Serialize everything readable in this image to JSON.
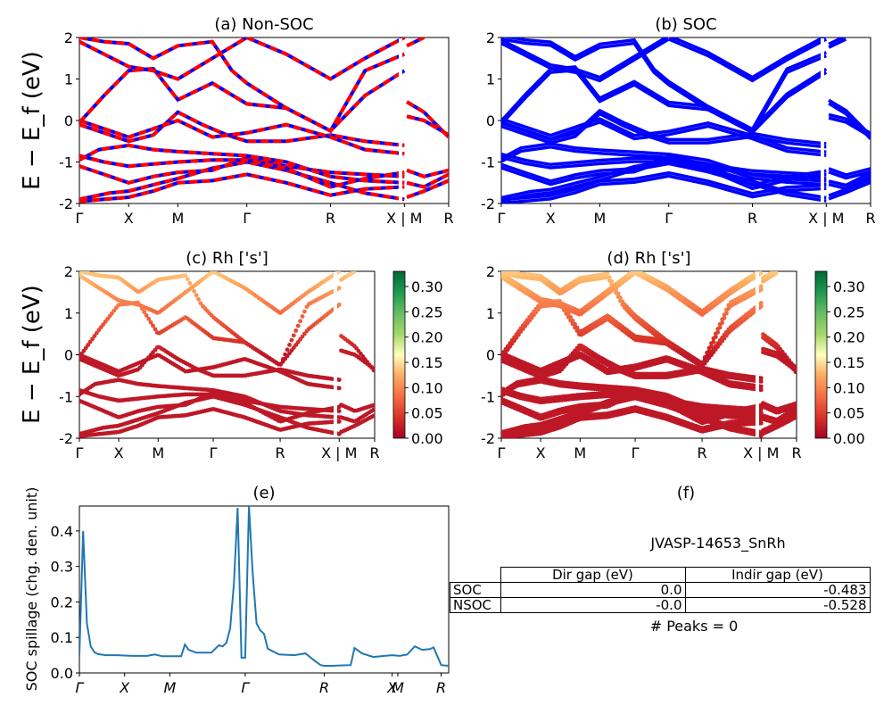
{
  "figure": {
    "ylabel_band": "E − E_f (eV)",
    "ylabel_spillage": "SOC spillage (chg. den. unit)"
  },
  "chart_data": [
    {
      "id": "a",
      "type": "line",
      "title": "(a) Non-SOC",
      "xlabel": "",
      "ylabel": "E − E_f (eV)",
      "ylim": [
        -2,
        2
      ],
      "yticks": [
        -2,
        -1,
        0,
        1,
        2
      ],
      "xticks": [
        "Γ",
        "X",
        "M",
        "Γ",
        "R",
        "X | M",
        "R"
      ],
      "tick_positions": [
        0,
        1,
        2,
        3.4,
        5.1,
        6.6,
        7.5
      ],
      "series_colors": [
        "#0000ff",
        "#ff0000"
      ],
      "bands": [
        [
          [
            0,
            -1.95
          ],
          [
            0.5,
            -1.9
          ],
          [
            1,
            -1.85
          ],
          [
            1.5,
            -1.7
          ],
          [
            2,
            -1.5
          ],
          [
            2.7,
            -1.45
          ],
          [
            3.4,
            -1.3
          ],
          [
            4.2,
            -1.5
          ],
          [
            5.1,
            -1.8
          ],
          [
            5.8,
            -1.65
          ],
          [
            6.6,
            -1.6
          ]
        ],
        [
          [
            0,
            -1.9
          ],
          [
            0.6,
            -1.75
          ],
          [
            1,
            -1.7
          ],
          [
            1.5,
            -1.55
          ],
          [
            2,
            -1.4
          ],
          [
            2.7,
            -1.15
          ],
          [
            3.4,
            -1.0
          ],
          [
            4.2,
            -1.2
          ],
          [
            5.1,
            -1.5
          ],
          [
            5.8,
            -1.75
          ],
          [
            6.6,
            -1.9
          ]
        ],
        [
          [
            0,
            -1.1
          ],
          [
            0.5,
            -1.3
          ],
          [
            1,
            -1.5
          ],
          [
            1.5,
            -1.35
          ],
          [
            2,
            -1.25
          ],
          [
            2.7,
            -1.2
          ],
          [
            3.4,
            -0.9
          ],
          [
            4.2,
            -1.1
          ],
          [
            5.1,
            -1.25
          ],
          [
            5.8,
            -1.3
          ],
          [
            6.6,
            -1.35
          ]
        ],
        [
          [
            0,
            -0.85
          ],
          [
            0.5,
            -1.0
          ],
          [
            1,
            -1.1
          ],
          [
            1.5,
            -1.05
          ],
          [
            2,
            -1.0
          ],
          [
            2.7,
            -0.95
          ],
          [
            3.4,
            -0.95
          ],
          [
            4.2,
            -1.15
          ],
          [
            5.1,
            -1.6
          ],
          [
            5.8,
            -1.4
          ],
          [
            6.6,
            -1.25
          ]
        ],
        [
          [
            0,
            -0.95
          ],
          [
            0.4,
            -0.7
          ],
          [
            1,
            -0.6
          ],
          [
            1.5,
            -0.7
          ],
          [
            2,
            -0.75
          ],
          [
            2.7,
            -0.8
          ],
          [
            3.4,
            -0.85
          ],
          [
            4.2,
            -1.0
          ],
          [
            5.1,
            -1.35
          ],
          [
            5.8,
            -1.45
          ],
          [
            6.6,
            -1.5
          ]
        ],
        [
          [
            0,
            -0.1
          ],
          [
            0.5,
            -0.3
          ],
          [
            1,
            -0.5
          ],
          [
            1.5,
            -0.35
          ],
          [
            2,
            0.2
          ],
          [
            2.5,
            -0.1
          ],
          [
            3,
            -0.35
          ],
          [
            3.4,
            -0.5
          ],
          [
            4.2,
            -0.5
          ],
          [
            5.1,
            -0.35
          ],
          [
            5.8,
            -0.5
          ],
          [
            6.6,
            -0.6
          ]
        ],
        [
          [
            0,
            0
          ],
          [
            0.5,
            -0.2
          ],
          [
            1,
            -0.4
          ],
          [
            1.5,
            -0.2
          ],
          [
            2,
            0.0
          ],
          [
            2.7,
            -0.4
          ],
          [
            3.4,
            -0.3
          ],
          [
            4.2,
            -0.1
          ],
          [
            5.1,
            -0.4
          ],
          [
            5.8,
            -0.7
          ],
          [
            6.6,
            -0.8
          ]
        ],
        [
          [
            0,
            -0.05
          ],
          [
            0.5,
            0.6
          ],
          [
            1,
            1.2
          ],
          [
            1.5,
            1.25
          ],
          [
            2,
            0.5
          ],
          [
            2.7,
            0.9
          ],
          [
            3.4,
            0.4
          ],
          [
            4.2,
            0.3
          ],
          [
            5.1,
            -0.25
          ],
          [
            5.8,
            0.6
          ],
          [
            6.6,
            1.2
          ]
        ],
        [
          [
            0,
            1.9
          ],
          [
            0.5,
            1.6
          ],
          [
            1,
            1.3
          ],
          [
            1.5,
            1.2
          ],
          [
            2,
            1.0
          ],
          [
            2.7,
            1.5
          ],
          [
            3.4,
            2.0
          ]
        ],
        [
          [
            0,
            2.0
          ],
          [
            0.5,
            1.9
          ],
          [
            1,
            1.85
          ],
          [
            1.5,
            1.5
          ],
          [
            2,
            1.8
          ],
          [
            2.7,
            1.9
          ],
          [
            3.1,
            1.2
          ],
          [
            3.4,
            0.9
          ],
          [
            4.2,
            0.3
          ],
          [
            5.1,
            -0.25
          ],
          [
            5.8,
            1.2
          ],
          [
            6.6,
            1.6
          ]
        ],
        [
          [
            3.4,
            2.0
          ],
          [
            4.2,
            1.6
          ],
          [
            5.1,
            1.0
          ],
          [
            5.8,
            1.5
          ],
          [
            6.6,
            2.0
          ]
        ],
        [
          [
            6.65,
            0.45
          ],
          [
            7.0,
            0.2
          ],
          [
            7.5,
            -0.4
          ]
        ],
        [
          [
            6.65,
            0.1
          ],
          [
            7.0,
            0.0
          ],
          [
            7.5,
            -0.35
          ]
        ],
        [
          [
            6.65,
            -1.2
          ],
          [
            7.0,
            -1.35
          ],
          [
            7.5,
            -1.2
          ]
        ],
        [
          [
            6.65,
            -1.5
          ],
          [
            7.0,
            -1.6
          ],
          [
            7.5,
            -1.3
          ]
        ],
        [
          [
            6.65,
            -1.85
          ],
          [
            7.0,
            -1.7
          ],
          [
            7.5,
            -1.45
          ]
        ],
        [
          [
            6.65,
            1.8
          ],
          [
            7.0,
            2.0
          ]
        ]
      ]
    },
    {
      "id": "b",
      "type": "line",
      "title": "(b) SOC",
      "xlabel": "",
      "ylabel": "",
      "ylim": [
        -2,
        2
      ],
      "yticks": [
        -2,
        -1,
        0,
        1,
        2
      ],
      "xticks": [
        "Γ",
        "X",
        "M",
        "Γ",
        "R",
        "X | M",
        "R"
      ],
      "tick_positions": [
        0,
        1,
        2,
        3.4,
        5.1,
        6.6,
        7.5
      ],
      "series_colors": [
        "#0000ff"
      ]
    },
    {
      "id": "c",
      "type": "scatter",
      "title": "(c)  Rh ['s']",
      "xlabel": "",
      "ylabel": "E − E_f (eV)",
      "ylim": [
        -2,
        2
      ],
      "yticks": [
        -2,
        -1,
        0,
        1,
        2
      ],
      "xticks": [
        "Γ",
        "X",
        "M",
        "Γ",
        "R",
        "X | M",
        "R"
      ],
      "tick_positions": [
        0,
        1,
        2,
        3.4,
        5.1,
        6.6,
        7.5
      ],
      "colorbar": {
        "min": 0.0,
        "max": 0.33,
        "ticks": [
          "0.00",
          "0.05",
          "0.10",
          "0.15",
          "0.20",
          "0.25",
          "0.30"
        ],
        "colormap": "RdYlGn"
      }
    },
    {
      "id": "d",
      "type": "scatter",
      "title": "(d) Rh ['s']",
      "xlabel": "",
      "ylabel": "",
      "ylim": [
        -2,
        2
      ],
      "yticks": [
        -2,
        -1,
        0,
        1,
        2
      ],
      "xticks": [
        "Γ",
        "X",
        "M",
        "Γ",
        "R",
        "X | M",
        "R"
      ],
      "tick_positions": [
        0,
        1,
        2,
        3.4,
        5.1,
        6.6,
        7.5
      ],
      "colorbar": {
        "min": 0.0,
        "max": 0.33,
        "ticks": [
          "0.00",
          "0.05",
          "0.10",
          "0.15",
          "0.20",
          "0.25",
          "0.30"
        ],
        "colormap": "RdYlGn"
      }
    },
    {
      "id": "e",
      "type": "line",
      "title": "(e)",
      "xlabel": "",
      "ylabel": "SOC spillage (chg. den. unit)",
      "ylim": [
        0,
        0.47
      ],
      "yticks": [
        0.0,
        0.1,
        0.2,
        0.3,
        0.4
      ],
      "xticks": [
        "Γ",
        "X",
        "M",
        "Γ",
        "R",
        "X",
        "M",
        "R"
      ],
      "tick_positions": [
        0,
        1.2,
        2.4,
        4.4,
        6.5,
        8.3,
        8.45,
        9.6
      ],
      "xlim": [
        0,
        9.8
      ],
      "series_colors": [
        "#1f77b4"
      ],
      "x": [
        0,
        0.1,
        0.2,
        0.3,
        0.4,
        0.5,
        0.7,
        1.0,
        1.4,
        1.8,
        2.0,
        2.2,
        2.4,
        2.7,
        2.8,
        2.9,
        3.1,
        3.5,
        3.7,
        3.8,
        3.9,
        4.0,
        4.1,
        4.2,
        4.3,
        4.4,
        4.5,
        4.6,
        4.7,
        4.8,
        4.9,
        5.0,
        5.3,
        5.7,
        6.0,
        6.2,
        6.4,
        6.5,
        6.7,
        6.9,
        7.2,
        7.3,
        7.5,
        7.8,
        8.1,
        8.3,
        8.5,
        8.7,
        8.9,
        9.1,
        9.3,
        9.4,
        9.6,
        9.8
      ],
      "values": [
        0.05,
        0.4,
        0.14,
        0.075,
        0.058,
        0.053,
        0.05,
        0.05,
        0.048,
        0.048,
        0.052,
        0.047,
        0.047,
        0.047,
        0.08,
        0.065,
        0.057,
        0.057,
        0.078,
        0.075,
        0.085,
        0.125,
        0.25,
        0.465,
        0.043,
        0.043,
        0.47,
        0.28,
        0.14,
        0.12,
        0.11,
        0.068,
        0.052,
        0.05,
        0.055,
        0.038,
        0.022,
        0.02,
        0.02,
        0.021,
        0.022,
        0.07,
        0.055,
        0.045,
        0.048,
        0.05,
        0.048,
        0.052,
        0.075,
        0.065,
        0.067,
        0.072,
        0.022,
        0.02
      ]
    }
  ],
  "panel_f": {
    "title": "(f)",
    "subtitle": "JVASP-14653_SnRh",
    "table": {
      "headers": [
        "",
        "Dir gap (eV)",
        "Indir gap (eV)"
      ],
      "rows": [
        [
          "SOC",
          "0.0",
          "-0.483"
        ],
        [
          "NSOC",
          "-0.0",
          "-0.528"
        ]
      ]
    },
    "peaks_text": "# Peaks = 0"
  }
}
